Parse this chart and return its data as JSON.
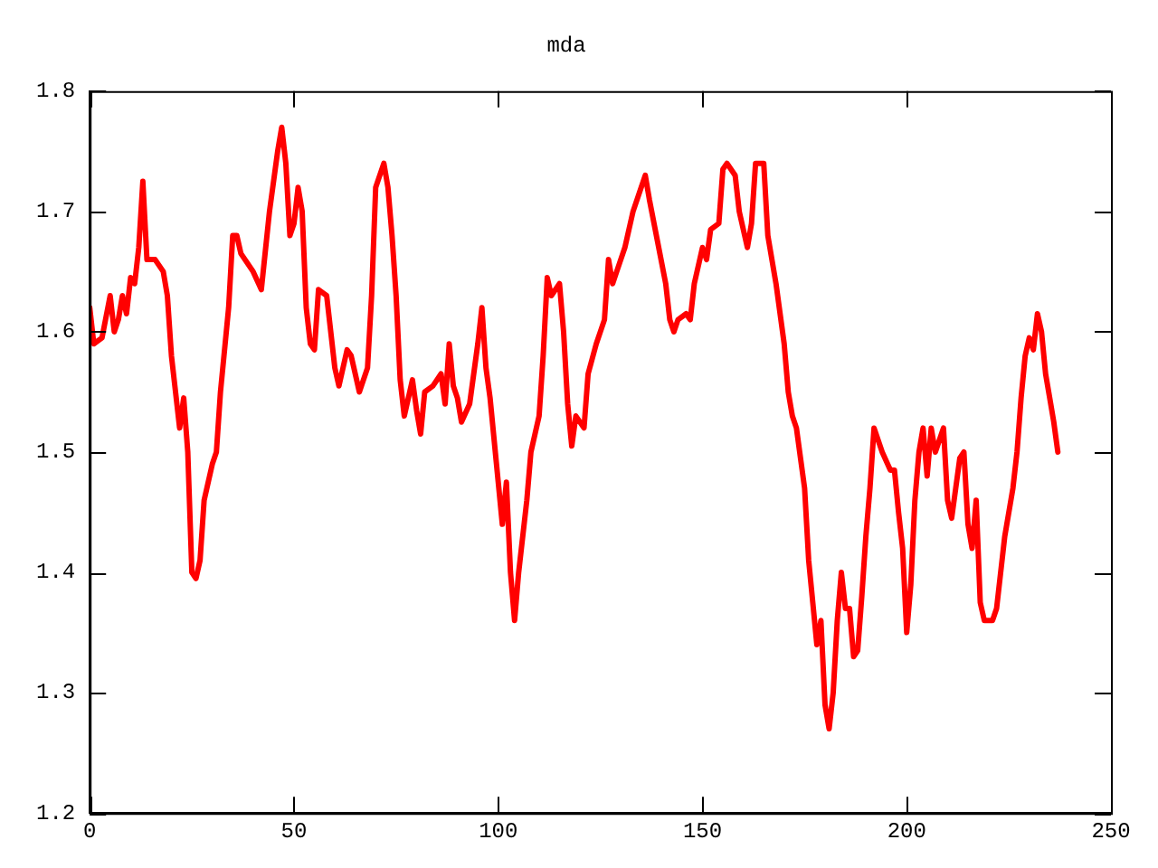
{
  "chart_data": {
    "type": "line",
    "title": "mda",
    "x": [
      0,
      1,
      3,
      5,
      6,
      7,
      8,
      9,
      10,
      11,
      12,
      13,
      14,
      16,
      18,
      19,
      20,
      21,
      22,
      23,
      24,
      25,
      26,
      27,
      28,
      30,
      31,
      32,
      34,
      35,
      36,
      37,
      40,
      42,
      44,
      46,
      47,
      48,
      49,
      50,
      51,
      52,
      53,
      54,
      55,
      56,
      58,
      60,
      61,
      63,
      64,
      66,
      68,
      69,
      70,
      72,
      73,
      74,
      75,
      76,
      77,
      79,
      80,
      81,
      82,
      84,
      86,
      87,
      88,
      89,
      90,
      91,
      93,
      95,
      96,
      97,
      98,
      100,
      101,
      102,
      103,
      104,
      105,
      107,
      108,
      110,
      111,
      112,
      113,
      115,
      116,
      117,
      118,
      119,
      121,
      122,
      124,
      126,
      127,
      128,
      129,
      131,
      133,
      135,
      136,
      137,
      139,
      141,
      142,
      143,
      144,
      146,
      147,
      148,
      150,
      151,
      152,
      154,
      155,
      156,
      158,
      159,
      160,
      161,
      162,
      163,
      165,
      166,
      168,
      170,
      171,
      172,
      173,
      175,
      176,
      177,
      178,
      179,
      180,
      181,
      182,
      183,
      184,
      185,
      186,
      187,
      188,
      189,
      190,
      191,
      192,
      194,
      196,
      197,
      198,
      199,
      200,
      201,
      202,
      203,
      204,
      205,
      206,
      207,
      208,
      209,
      210,
      211,
      212,
      213,
      214,
      215,
      216,
      217,
      218,
      219,
      221,
      222,
      224,
      226,
      227,
      228,
      229,
      230,
      231,
      232,
      233,
      234,
      235,
      236,
      237
    ],
    "series": [
      {
        "color": "#ff0000",
        "values": [
          1.62,
          1.59,
          1.595,
          1.63,
          1.6,
          1.61,
          1.63,
          1.615,
          1.645,
          1.64,
          1.67,
          1.725,
          1.66,
          1.66,
          1.65,
          1.63,
          1.58,
          1.55,
          1.52,
          1.545,
          1.5,
          1.4,
          1.395,
          1.41,
          1.46,
          1.49,
          1.5,
          1.55,
          1.62,
          1.68,
          1.68,
          1.665,
          1.65,
          1.635,
          1.7,
          1.75,
          1.77,
          1.74,
          1.68,
          1.69,
          1.72,
          1.7,
          1.62,
          1.59,
          1.585,
          1.635,
          1.63,
          1.57,
          1.555,
          1.585,
          1.58,
          1.55,
          1.57,
          1.63,
          1.72,
          1.74,
          1.72,
          1.68,
          1.63,
          1.56,
          1.53,
          1.56,
          1.535,
          1.515,
          1.55,
          1.555,
          1.565,
          1.54,
          1.59,
          1.555,
          1.545,
          1.525,
          1.54,
          1.59,
          1.62,
          1.57,
          1.545,
          1.475,
          1.44,
          1.475,
          1.4,
          1.36,
          1.4,
          1.46,
          1.5,
          1.53,
          1.58,
          1.645,
          1.63,
          1.64,
          1.6,
          1.54,
          1.505,
          1.53,
          1.52,
          1.565,
          1.59,
          1.61,
          1.66,
          1.64,
          1.65,
          1.67,
          1.7,
          1.72,
          1.73,
          1.71,
          1.675,
          1.64,
          1.61,
          1.6,
          1.61,
          1.615,
          1.61,
          1.64,
          1.67,
          1.66,
          1.685,
          1.69,
          1.735,
          1.74,
          1.73,
          1.7,
          1.685,
          1.67,
          1.69,
          1.74,
          1.74,
          1.68,
          1.64,
          1.59,
          1.55,
          1.53,
          1.52,
          1.47,
          1.41,
          1.375,
          1.34,
          1.36,
          1.29,
          1.27,
          1.3,
          1.36,
          1.4,
          1.37,
          1.37,
          1.33,
          1.335,
          1.38,
          1.43,
          1.47,
          1.52,
          1.5,
          1.485,
          1.485,
          1.45,
          1.42,
          1.35,
          1.39,
          1.46,
          1.5,
          1.52,
          1.48,
          1.52,
          1.5,
          1.51,
          1.52,
          1.46,
          1.445,
          1.47,
          1.495,
          1.5,
          1.44,
          1.42,
          1.46,
          1.375,
          1.36,
          1.36,
          1.37,
          1.43,
          1.47,
          1.5,
          1.545,
          1.58,
          1.595,
          1.585,
          1.615,
          1.6,
          1.565,
          1.545,
          1.525,
          1.5
        ]
      }
    ],
    "xlim": [
      0,
      250
    ],
    "xticks": [
      0,
      50,
      100,
      150,
      200,
      250
    ],
    "ylim": [
      1.2,
      1.8
    ],
    "yticks": [
      {
        "value": 1.2,
        "label": "1.2"
      },
      {
        "value": 1.3,
        "label": "1.3"
      },
      {
        "value": 1.4,
        "label": "1.4"
      },
      {
        "value": 1.5,
        "label": "1.5"
      },
      {
        "value": 1.6,
        "label": "1.6"
      },
      {
        "value": 1.7,
        "label": "1.7"
      },
      {
        "value": 1.8,
        "label": "1.8"
      }
    ],
    "grid": false,
    "legend": false,
    "marker": "none",
    "line_style": "solid"
  }
}
